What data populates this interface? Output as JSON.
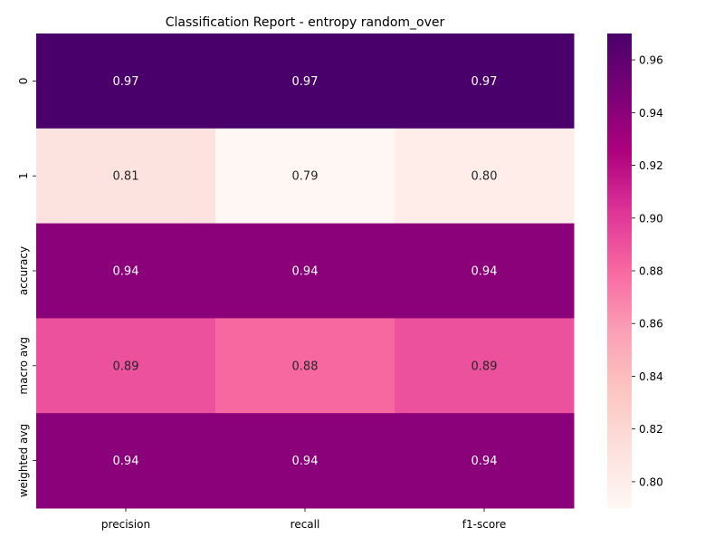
{
  "chart_data": {
    "type": "heatmap",
    "title": "Classification Report - entropy random_over",
    "rows": [
      "0",
      "1",
      "accuracy",
      "macro avg",
      "weighted avg"
    ],
    "columns": [
      "precision",
      "recall",
      "f1-score"
    ],
    "values": [
      [
        0.97,
        0.97,
        0.97
      ],
      [
        0.81,
        0.79,
        0.8
      ],
      [
        0.94,
        0.94,
        0.94
      ],
      [
        0.89,
        0.88,
        0.89
      ],
      [
        0.94,
        0.94,
        0.94
      ]
    ],
    "cell_labels": [
      [
        "0.97",
        "0.97",
        "0.97"
      ],
      [
        "0.81",
        "0.79",
        "0.80"
      ],
      [
        "0.94",
        "0.94",
        "0.94"
      ],
      [
        "0.89",
        "0.88",
        "0.89"
      ],
      [
        "0.94",
        "0.94",
        "0.94"
      ]
    ],
    "colormap": "RdPu",
    "vmin": 0.79,
    "vmax": 0.97,
    "colorbar": {
      "ticks": [
        0.8,
        0.82,
        0.84,
        0.86,
        0.88,
        0.9,
        0.92,
        0.94,
        0.96
      ],
      "tick_labels": [
        "0.80",
        "0.82",
        "0.84",
        "0.86",
        "0.88",
        "0.90",
        "0.92",
        "0.94",
        "0.96"
      ],
      "placement": "right"
    },
    "colors": [
      "#fff7f3",
      "#fde0dd",
      "#fcc5c0",
      "#fa9fb5",
      "#f768a1",
      "#dd3497",
      "#ae017e",
      "#7a0177",
      "#49006a"
    ]
  }
}
